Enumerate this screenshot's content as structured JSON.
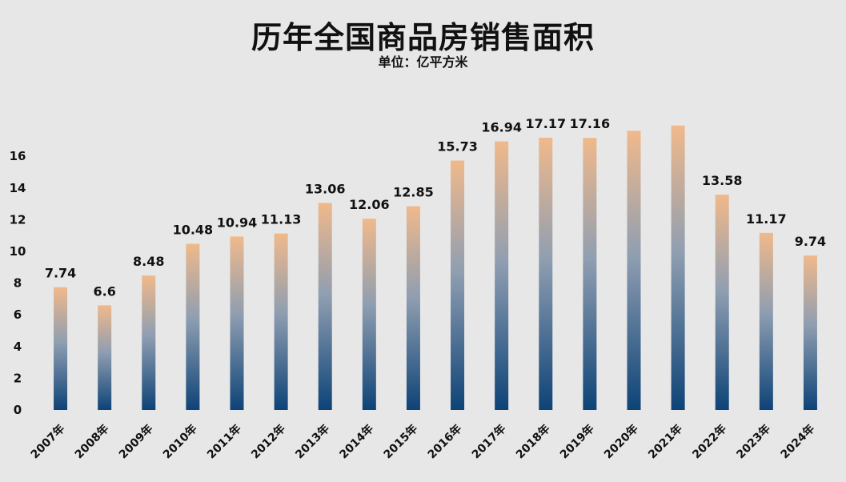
{
  "chart_data": {
    "type": "bar",
    "title": "历年全国商品房销售面积",
    "subtitle": "单位：亿平方米",
    "categories": [
      "2007年",
      "2008年",
      "2009年",
      "2010年",
      "2011年",
      "2012年",
      "2013年",
      "2014年",
      "2015年",
      "2016年",
      "2017年",
      "2018年",
      "2019年",
      "2020年",
      "2021年",
      "2022年",
      "2023年",
      "2024年"
    ],
    "values": [
      7.74,
      6.6,
      8.48,
      10.48,
      10.94,
      11.13,
      13.06,
      12.06,
      12.85,
      15.73,
      16.94,
      17.17,
      17.16,
      17.61,
      17.94,
      13.58,
      11.17,
      9.74
    ],
    "data_labels": [
      "7.74",
      "6.6",
      "8.48",
      "10.48",
      "10.94",
      "11.13",
      "13.06",
      "12.06",
      "12.85",
      "15.73",
      "16.94",
      "17.17",
      "17.16",
      "",
      "",
      "13.58",
      "11.17",
      "9.74"
    ],
    "yticks": [
      0,
      2,
      4,
      6,
      8,
      10,
      12,
      14,
      16
    ],
    "ylim": [
      0,
      18
    ],
    "grid": false,
    "legend": "none",
    "colors": {
      "bar_top": "#f0b98b",
      "bar_mid": "#8f9eb1",
      "bar_bottom": "#0d4377",
      "background": "#e7e7e7",
      "text": "#111111"
    }
  }
}
